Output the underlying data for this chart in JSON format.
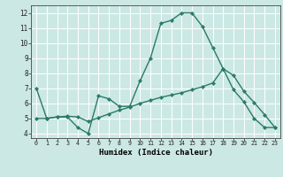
{
  "title": "",
  "xlabel": "Humidex (Indice chaleur)",
  "background_color": "#cce8e4",
  "grid_color": "#ffffff",
  "line_color": "#2a7a6a",
  "xlim": [
    -0.5,
    23.5
  ],
  "ylim": [
    3.7,
    12.5
  ],
  "yticks": [
    4,
    5,
    6,
    7,
    8,
    9,
    10,
    11,
    12
  ],
  "xticks": [
    0,
    1,
    2,
    3,
    4,
    5,
    6,
    7,
    8,
    9,
    10,
    11,
    12,
    13,
    14,
    15,
    16,
    17,
    18,
    19,
    20,
    21,
    22,
    23
  ],
  "curve1_x": [
    0,
    1,
    2,
    3,
    4,
    5,
    6,
    7,
    8,
    9,
    10,
    11,
    12,
    13,
    14,
    15,
    16,
    17,
    18,
    19,
    20,
    21,
    22,
    23
  ],
  "curve1_y": [
    7.0,
    5.0,
    5.1,
    5.1,
    4.4,
    4.0,
    6.5,
    6.3,
    5.8,
    5.8,
    7.5,
    9.0,
    11.3,
    11.5,
    12.0,
    12.0,
    11.1,
    9.7,
    8.3,
    6.9,
    6.1,
    5.0,
    4.4,
    4.4
  ],
  "curve2_x": [
    0,
    1,
    2,
    3,
    4,
    5,
    6,
    7,
    8,
    9,
    10,
    11,
    12,
    13,
    14,
    15,
    16,
    17,
    18,
    19,
    20,
    21,
    22,
    23
  ],
  "curve2_y": [
    5.0,
    5.0,
    5.1,
    5.15,
    5.1,
    4.8,
    5.05,
    5.3,
    5.55,
    5.75,
    6.0,
    6.2,
    6.4,
    6.55,
    6.7,
    6.9,
    7.1,
    7.35,
    8.3,
    7.85,
    6.8,
    6.05,
    5.25,
    4.4
  ]
}
